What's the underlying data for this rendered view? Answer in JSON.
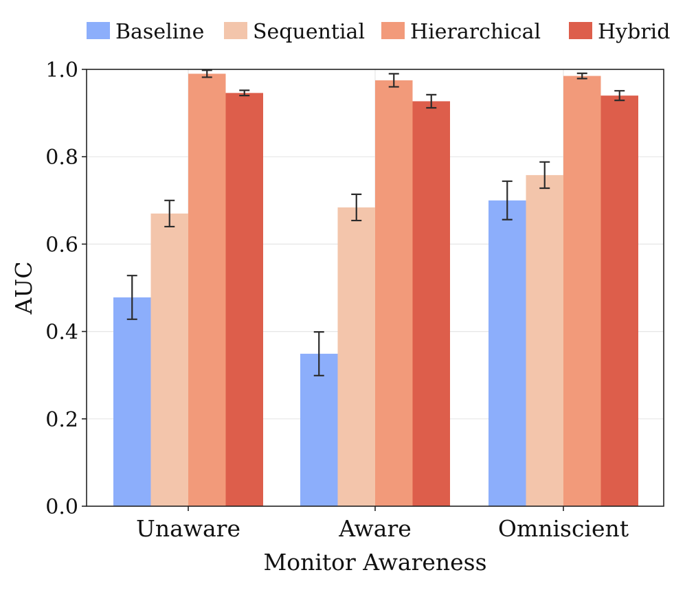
{
  "chart_data": {
    "type": "bar",
    "title": "",
    "xlabel": "Monitor Awareness",
    "ylabel": "AUC",
    "ylim": [
      0.0,
      1.0
    ],
    "yticks": [
      0.0,
      0.2,
      0.4,
      0.6,
      0.8,
      1.0
    ],
    "ytick_labels": [
      "0.0",
      "0.2",
      "0.4",
      "0.6",
      "0.8",
      "1.0"
    ],
    "grid": true,
    "legend_position": "top",
    "categories": [
      "Unaware",
      "Aware",
      "Omniscient"
    ],
    "series": [
      {
        "name": "Baseline",
        "color": "#8caefb",
        "values": [
          0.478,
          0.349,
          0.7
        ],
        "errors": [
          0.05,
          0.05,
          0.044
        ]
      },
      {
        "name": "Sequential",
        "color": "#f3c5ab",
        "values": [
          0.67,
          0.684,
          0.758
        ],
        "errors": [
          0.03,
          0.03,
          0.03
        ]
      },
      {
        "name": "Hierarchical",
        "color": "#f29a7a",
        "values": [
          0.99,
          0.975,
          0.985
        ],
        "errors": [
          0.008,
          0.015,
          0.006
        ]
      },
      {
        "name": "Hybrid",
        "color": "#dd5e4b",
        "values": [
          0.946,
          0.927,
          0.94
        ],
        "errors": [
          0.006,
          0.015,
          0.011
        ]
      }
    ]
  }
}
